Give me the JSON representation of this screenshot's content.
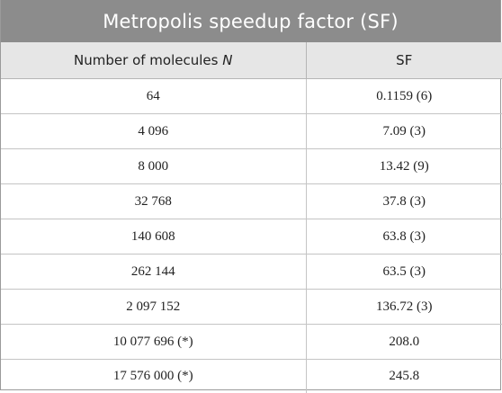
{
  "table": {
    "title": "Metropolis speedup factor (SF)",
    "headers": {
      "col1_text": "Number of molecules ",
      "col1_var": "N",
      "col2": "SF"
    },
    "rows": [
      {
        "n": "64",
        "sf": "0.1159 (6)"
      },
      {
        "n": "4 096",
        "sf": "7.09 (3)"
      },
      {
        "n": "8 000",
        "sf": "13.42 (9)"
      },
      {
        "n": "32 768",
        "sf": "37.8 (3)"
      },
      {
        "n": "140 608",
        "sf": "63.8 (3)"
      },
      {
        "n": "262 144",
        "sf": "63.5 (3)"
      },
      {
        "n": "2 097 152",
        "sf": "136.72 (3)"
      },
      {
        "n": "10 077 696 (*)",
        "sf": "208.0"
      },
      {
        "n": "17 576 000 (*)",
        "sf": "245.8"
      }
    ]
  }
}
